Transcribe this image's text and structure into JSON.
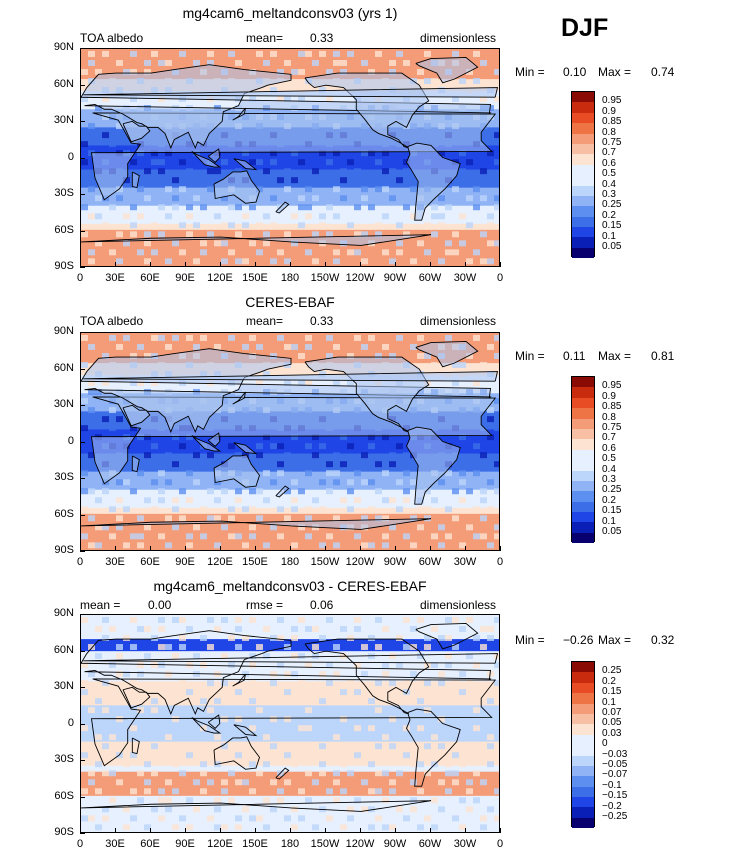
{
  "season": "DJF",
  "panels": [
    {
      "title": "mg4cam6_meltandconsv03 (yrs 1)",
      "left_label": "TOA albedo",
      "mean_label": "mean=",
      "mean_value": "0.33",
      "right_label": "dimensionless",
      "min_label": "Min =",
      "min_value": "0.10",
      "max_label": "Max =",
      "max_value": "0.74",
      "colorbar": [
        "0.95",
        "0.9",
        "0.85",
        "0.8",
        "0.75",
        "0.7",
        "0.6",
        "0.5",
        "0.4",
        "0.3",
        "0.25",
        "0.2",
        "0.15",
        "0.1",
        "0.05"
      ]
    },
    {
      "title": "CERES-EBAF",
      "left_label": "TOA albedo",
      "mean_label": "mean=",
      "mean_value": "0.33",
      "right_label": "dimensionless",
      "min_label": "Min =",
      "min_value": "0.11",
      "max_label": "Max =",
      "max_value": "0.81",
      "colorbar": [
        "0.95",
        "0.9",
        "0.85",
        "0.8",
        "0.75",
        "0.7",
        "0.6",
        "0.5",
        "0.4",
        "0.3",
        "0.25",
        "0.2",
        "0.15",
        "0.1",
        "0.05"
      ]
    },
    {
      "title": "mg4cam6_meltandconsv03 - CERES-EBAF",
      "left_label": "mean =",
      "mean_label": "",
      "mean_value": "0.00",
      "rmse_label": "rmse =",
      "rmse_value": "0.06",
      "right_label": "dimensionless",
      "min_label": "Min =",
      "min_value": "−0.26",
      "max_label": "Max =",
      "max_value": "0.32",
      "colorbar": [
        "0.25",
        "0.2",
        "0.15",
        "0.1",
        "0.07",
        "0.05",
        "0.03",
        "0",
        "−0.03",
        "−0.05",
        "−0.07",
        "−0.1",
        "−0.15",
        "−0.2",
        "−0.25"
      ]
    }
  ],
  "lat_ticks": [
    "90N",
    "60N",
    "30N",
    "0",
    "30S",
    "60S",
    "90S"
  ],
  "lon_ticks": [
    "0",
    "30E",
    "60E",
    "90E",
    "120E",
    "150E",
    "180",
    "150W",
    "120W",
    "90W",
    "60W",
    "30W",
    "0"
  ],
  "colors": {
    "seq": [
      "#08006e",
      "#0a1fb5",
      "#1f45e6",
      "#3c6ee8",
      "#5c8ff0",
      "#8fb3f5",
      "#bcd5fa",
      "#e6f0ff",
      "#fde4d2",
      "#f7bfa3",
      "#f49c77",
      "#ee7446",
      "#e84c25",
      "#c92b0e",
      "#8a0a04"
    ],
    "land": "#a9c3ef"
  }
}
